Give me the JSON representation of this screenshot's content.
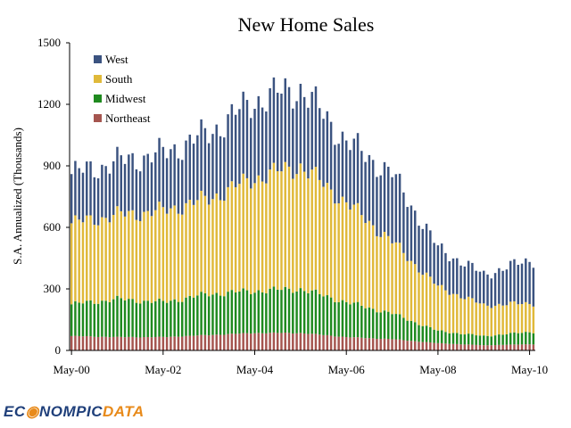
{
  "chart_data": {
    "type": "bar",
    "stacked": true,
    "title": "New Home Sales",
    "xlabel": "",
    "ylabel": "S.A. Annualized (Thousands)",
    "ylim": [
      0,
      1500
    ],
    "yticks": [
      "0",
      "300",
      "600",
      "900",
      "1200",
      "1500"
    ],
    "xticks": [
      "May-00",
      "May-02",
      "May-04",
      "May-06",
      "May-08",
      "May-10"
    ],
    "x_range": [
      "2000-05",
      "2010-06"
    ],
    "legend_position": "top-left",
    "grid": false,
    "series": [
      {
        "name": "West",
        "color": "#3b5380"
      },
      {
        "name": "South",
        "color": "#e0b93a"
      },
      {
        "name": "Midwest",
        "color": "#1f8a1f"
      },
      {
        "name": "Northeast",
        "color": "#a5554f"
      }
    ],
    "stacked_totals": [
      {
        "date": "2000-05",
        "northeast": 70,
        "midwest": 225,
        "south": 620,
        "total": 860
      },
      {
        "date": "2001-05",
        "northeast": 65,
        "midwest": 250,
        "south": 660,
        "total": 920
      },
      {
        "date": "2002-05",
        "northeast": 65,
        "midwest": 235,
        "south": 680,
        "total": 960
      },
      {
        "date": "2003-05",
        "northeast": 75,
        "midwest": 275,
        "south": 740,
        "total": 1060
      },
      {
        "date": "2004-05",
        "northeast": 85,
        "midwest": 290,
        "south": 840,
        "total": 1220
      },
      {
        "date": "2005-05",
        "northeast": 85,
        "midwest": 300,
        "south": 900,
        "total": 1280
      },
      {
        "date": "2006-05",
        "northeast": 65,
        "midwest": 235,
        "south": 720,
        "total": 1020
      },
      {
        "date": "2007-05",
        "northeast": 55,
        "midwest": 180,
        "south": 530,
        "total": 860
      },
      {
        "date": "2008-05",
        "northeast": 35,
        "midwest": 95,
        "south": 310,
        "total": 500
      },
      {
        "date": "2009-05",
        "northeast": 25,
        "midwest": 70,
        "south": 220,
        "total": 370
      },
      {
        "date": "2010-05",
        "northeast": 30,
        "midwest": 90,
        "south": 230,
        "total": 440
      }
    ]
  },
  "logo": {
    "part1": "EC",
    "part2": "NOMPIC",
    "part3": "DATA"
  }
}
